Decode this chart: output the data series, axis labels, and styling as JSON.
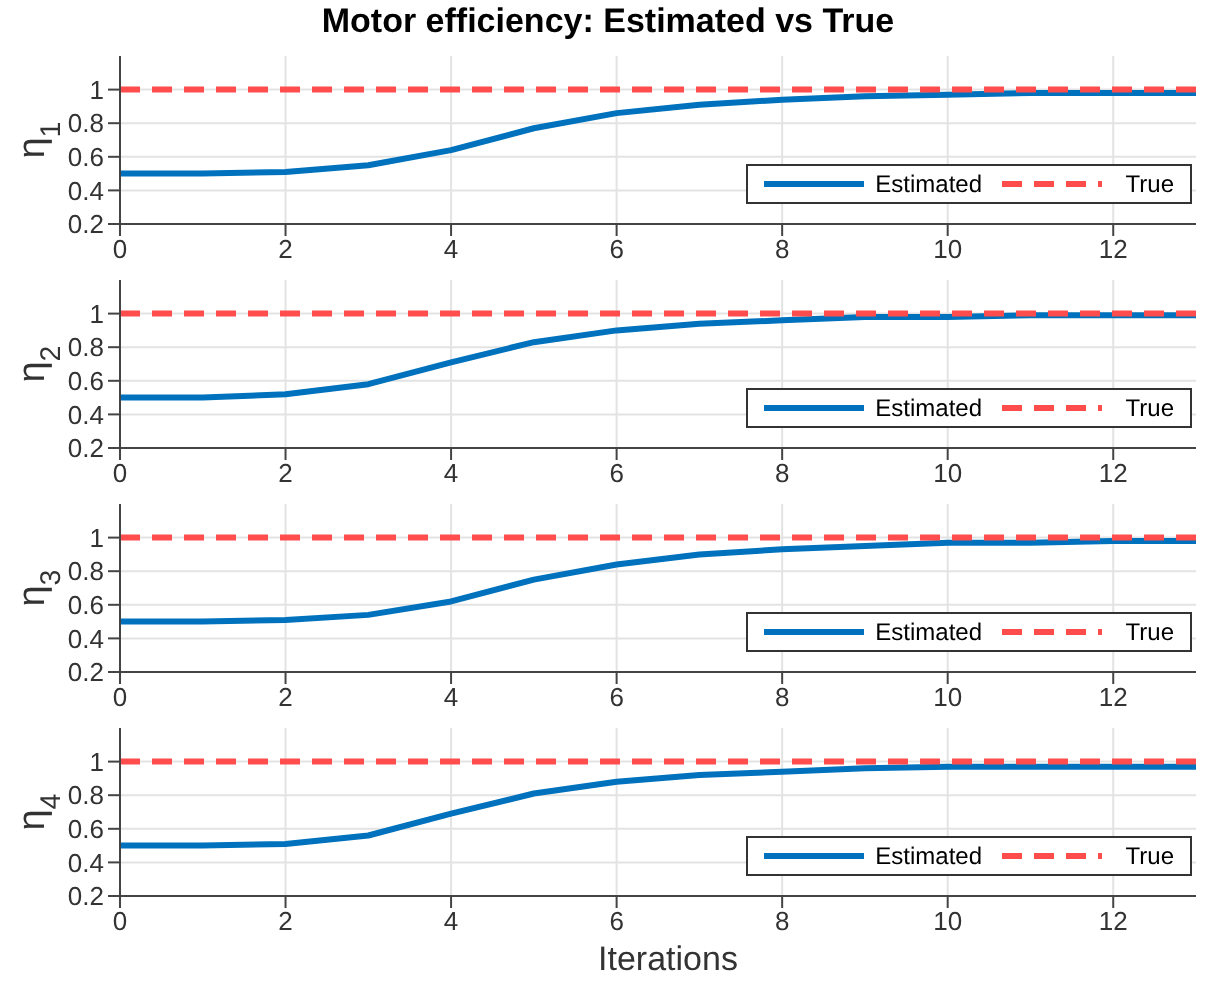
{
  "chart_data": [
    {
      "type": "line",
      "title": "Motor efficiency: Estimated vs True",
      "ylabel": "η$_{1}$",
      "xlim": [
        0,
        13
      ],
      "xticks": [
        0,
        2,
        4,
        6,
        8,
        10,
        12
      ],
      "ylim": [
        0.2,
        1.2
      ],
      "yticks": [
        0.2,
        0.4,
        0.6,
        0.8,
        1
      ],
      "grid": true,
      "legend": "bottom right",
      "marker": "none",
      "series": [
        {
          "name": "Estimated",
          "color": "#0072bd",
          "line_style": "solid",
          "x": [
            0,
            1,
            2,
            3,
            4,
            5,
            6,
            7,
            8,
            9,
            10,
            11,
            12,
            13
          ],
          "values": [
            0.5,
            0.5,
            0.51,
            0.55,
            0.64,
            0.77,
            0.86,
            0.91,
            0.94,
            0.96,
            0.97,
            0.98,
            0.98,
            0.98
          ]
        },
        {
          "name": "True",
          "color": "#ff4d4d",
          "line_style": "dashed",
          "x": [
            0,
            13
          ],
          "values": [
            1,
            1
          ]
        }
      ]
    },
    {
      "type": "line",
      "ylabel": "η$_{2}$",
      "xlim": [
        0,
        13
      ],
      "xticks": [
        0,
        2,
        4,
        6,
        8,
        10,
        12
      ],
      "ylim": [
        0.2,
        1.2
      ],
      "yticks": [
        0.2,
        0.4,
        0.6,
        0.8,
        1
      ],
      "grid": true,
      "legend": "bottom right",
      "marker": "none",
      "series": [
        {
          "name": "Estimated",
          "color": "#0072bd",
          "line_style": "solid",
          "x": [
            0,
            1,
            2,
            3,
            4,
            5,
            6,
            7,
            8,
            9,
            10,
            11,
            12,
            13
          ],
          "values": [
            0.5,
            0.5,
            0.52,
            0.58,
            0.71,
            0.83,
            0.9,
            0.94,
            0.96,
            0.98,
            0.98,
            0.99,
            0.99,
            0.99
          ]
        },
        {
          "name": "True",
          "color": "#ff4d4d",
          "line_style": "dashed",
          "x": [
            0,
            13
          ],
          "values": [
            1,
            1
          ]
        }
      ]
    },
    {
      "type": "line",
      "ylabel": "η$_{3}$",
      "xlim": [
        0,
        13
      ],
      "xticks": [
        0,
        2,
        4,
        6,
        8,
        10,
        12
      ],
      "ylim": [
        0.2,
        1.2
      ],
      "yticks": [
        0.2,
        0.4,
        0.6,
        0.8,
        1
      ],
      "grid": true,
      "legend": "bottom right",
      "marker": "none",
      "series": [
        {
          "name": "Estimated",
          "color": "#0072bd",
          "line_style": "solid",
          "x": [
            0,
            1,
            2,
            3,
            4,
            5,
            6,
            7,
            8,
            9,
            10,
            11,
            12,
            13
          ],
          "values": [
            0.5,
            0.5,
            0.51,
            0.54,
            0.62,
            0.75,
            0.84,
            0.9,
            0.93,
            0.95,
            0.97,
            0.97,
            0.98,
            0.98
          ]
        },
        {
          "name": "True",
          "color": "#ff4d4d",
          "line_style": "dashed",
          "x": [
            0,
            13
          ],
          "values": [
            1,
            1
          ]
        }
      ]
    },
    {
      "type": "line",
      "ylabel": "η$_{4}$",
      "xlabel": "Iterations",
      "xlim": [
        0,
        13
      ],
      "xticks": [
        0,
        2,
        4,
        6,
        8,
        10,
        12
      ],
      "ylim": [
        0.2,
        1.2
      ],
      "yticks": [
        0.2,
        0.4,
        0.6,
        0.8,
        1
      ],
      "grid": true,
      "legend": "bottom right",
      "marker": "none",
      "series": [
        {
          "name": "Estimated",
          "color": "#0072bd",
          "line_style": "solid",
          "x": [
            0,
            1,
            2,
            3,
            4,
            5,
            6,
            7,
            8,
            9,
            10,
            11,
            12,
            13
          ],
          "values": [
            0.5,
            0.5,
            0.51,
            0.56,
            0.69,
            0.81,
            0.88,
            0.92,
            0.94,
            0.96,
            0.97,
            0.97,
            0.97,
            0.97
          ]
        },
        {
          "name": "True",
          "color": "#ff4d4d",
          "line_style": "dashed",
          "x": [
            0,
            13
          ],
          "values": [
            1,
            1
          ]
        }
      ]
    }
  ]
}
